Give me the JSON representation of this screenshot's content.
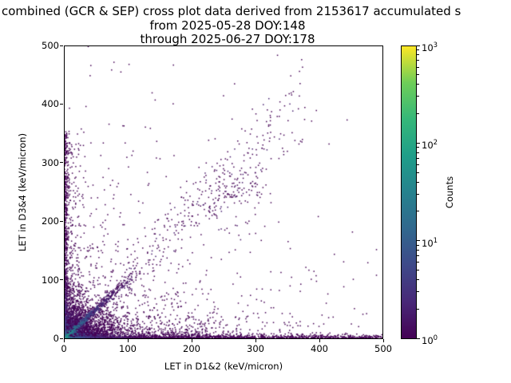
{
  "title": {
    "line1": "combined (GCR & SEP) cross plot data derived from 2153617 accumulated s",
    "line2": "from 2025-05-28 DOY:148",
    "line3": "through 2025-06-27 DOY:178"
  },
  "axes": {
    "xlabel": "LET in D1&2 (keV/micron)",
    "ylabel": "LET in D3&4 (keV/micron)",
    "xlim": [
      0,
      500
    ],
    "ylim": [
      0,
      500
    ],
    "xticks": [
      0,
      100,
      200,
      300,
      400,
      500
    ],
    "yticks": [
      0,
      100,
      200,
      300,
      400,
      500
    ]
  },
  "colorbar": {
    "label": "Counts",
    "scale": "log",
    "tick_base": "10",
    "tick_exponents": [
      0,
      1,
      2,
      3
    ],
    "min": 1,
    "max": 1000
  },
  "chart_data": {
    "type": "scatter",
    "subtype": "2d-histogram-cross-plot",
    "title": "combined (GCR & SEP) cross plot data derived from 2153617 accumulated s",
    "subtitle_lines": [
      "from 2025-05-28 DOY:148",
      "through 2025-06-27 DOY:178"
    ],
    "xlabel": "LET in D1&2 (keV/micron)",
    "ylabel": "LET in D3&4 (keV/micron)",
    "xlim": [
      0,
      500
    ],
    "ylim": [
      0,
      500
    ],
    "grid": false,
    "legend": "colorbar-right",
    "counts_scale": "log10, 1 to 1000",
    "colormap": "viridis",
    "colormap_stops": [
      [
        0.0,
        "#440154"
      ],
      [
        0.125,
        "#482878"
      ],
      [
        0.25,
        "#3e4989"
      ],
      [
        0.375,
        "#31688e"
      ],
      [
        0.5,
        "#26828e"
      ],
      [
        0.625,
        "#1f9e89"
      ],
      [
        0.75,
        "#35b779"
      ],
      [
        0.875,
        "#6ece58"
      ],
      [
        1.0,
        "#fde725"
      ]
    ],
    "description": "Dense hotspot at origin reaching ~1000 counts (yellow-green), teal diagonal streak y~x out to ~35 keV/micron, dense dark-purple cloud below ~100x100, single-count bands hugging both axes (x-band to 500, y-band to ~350), sparse diagonal y~x scatter continuing to ~(360,480) with a loose cluster near (255,245), sparse single-count background concentrated at low LET",
    "seed": 20250628,
    "render_features": [
      {
        "kind": "cloud",
        "n": 2800,
        "sx": 26,
        "sy": 22,
        "tA": 0.42,
        "dScale": 24
      },
      {
        "kind": "lowband",
        "n": 520,
        "sx": 95,
        "sy": 26
      },
      {
        "kind": "ridge",
        "n": 900,
        "len": 108,
        "sx": 40,
        "jit": 1.6,
        "slopeJit": 0.05,
        "tA": 0.5,
        "dScale": 42
      },
      {
        "kind": "diag",
        "n": 270,
        "x0": 50,
        "span": 330,
        "slope0": 0.9,
        "slopeR": 0.32,
        "yJit": 18
      },
      {
        "kind": "cluster",
        "n": 130,
        "cx": 255,
        "cy": 245,
        "sxx": 34,
        "syy": 30
      },
      {
        "kind": "bandx",
        "n": 1500,
        "pow": 1.35,
        "ysc": 2.2,
        "tA": 0.45,
        "dScale": 50
      },
      {
        "kind": "bumpx",
        "n": 190,
        "cx": 185,
        "sxx": 38,
        "ysc": 10
      },
      {
        "kind": "bandy",
        "n": 620,
        "pow": 1.6,
        "ymax": 355,
        "xsc": 1.8,
        "tA": 0.32,
        "dScale": 55
      },
      {
        "kind": "leftscatter",
        "n": 300,
        "xsc": 13,
        "ymax": 335
      },
      {
        "kind": "sparse",
        "n": 620,
        "sx": 150,
        "sy": 95
      },
      {
        "kind": "wide",
        "n": 85,
        "ymax": 485
      },
      {
        "kind": "hotspot",
        "streakLen": 36,
        "coreT": 0.95,
        "streakT": 0.55
      }
    ]
  }
}
